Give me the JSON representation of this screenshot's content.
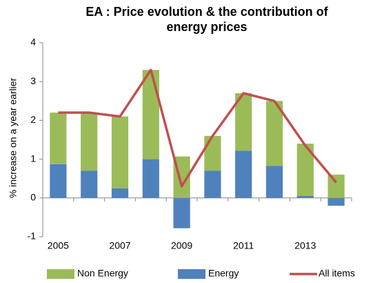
{
  "chart_data": {
    "type": "bar",
    "title": "EA : Price evolution & the contribution of energy prices",
    "y_label": "% increase on a year earlier",
    "categories": [
      "2005",
      null,
      "2007",
      null,
      "2009",
      null,
      "2011",
      null,
      "2013",
      null
    ],
    "series": [
      {
        "name": "Non Energy",
        "color": "#9bbb59",
        "values": [
          1.33,
          1.5,
          1.85,
          2.3,
          1.07,
          0.9,
          1.48,
          1.67,
          1.35,
          0.6
        ]
      },
      {
        "name": "Energy",
        "color": "#4f81bd",
        "values": [
          0.87,
          0.7,
          0.25,
          1.0,
          -0.78,
          0.7,
          1.22,
          0.83,
          0.05,
          -0.2
        ]
      },
      {
        "name": "All items",
        "color": "#c0504d",
        "type": "line",
        "values": [
          2.2,
          2.2,
          2.1,
          3.3,
          0.3,
          1.6,
          2.7,
          2.5,
          1.35,
          0.4
        ]
      }
    ],
    "ylim": [
      -1,
      4
    ],
    "yticks": [
      -1,
      0,
      1,
      2,
      3,
      4
    ],
    "grid": false,
    "legend": "bottom"
  }
}
